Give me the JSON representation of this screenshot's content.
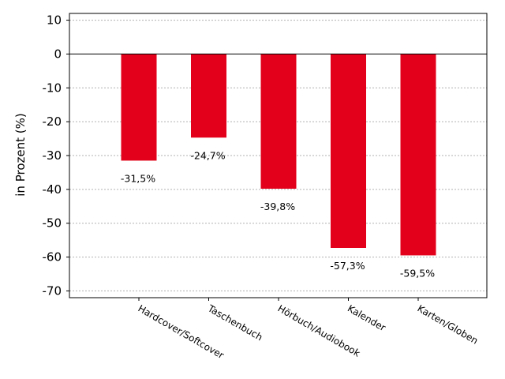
{
  "chart_data": {
    "type": "bar",
    "categories": [
      "Hardcover/Softcover",
      "Taschenbuch",
      "Hörbuch/Audiobook",
      "Kalender",
      "Karten/Globen"
    ],
    "values": [
      -31.5,
      -24.7,
      -39.8,
      -57.3,
      -59.5
    ],
    "data_labels": [
      "-31,5%",
      "-24,7%",
      "-39,8%",
      "-57,3%",
      "-59,5%"
    ],
    "ylabel": "in Prozent (%)",
    "ylim": [
      -72,
      12
    ],
    "yticks": [
      10,
      0,
      -10,
      -20,
      -30,
      -40,
      -50,
      -60,
      -70
    ],
    "bar_color": "#e2001a",
    "grid": "horizontal dotted",
    "zero_line": true
  }
}
